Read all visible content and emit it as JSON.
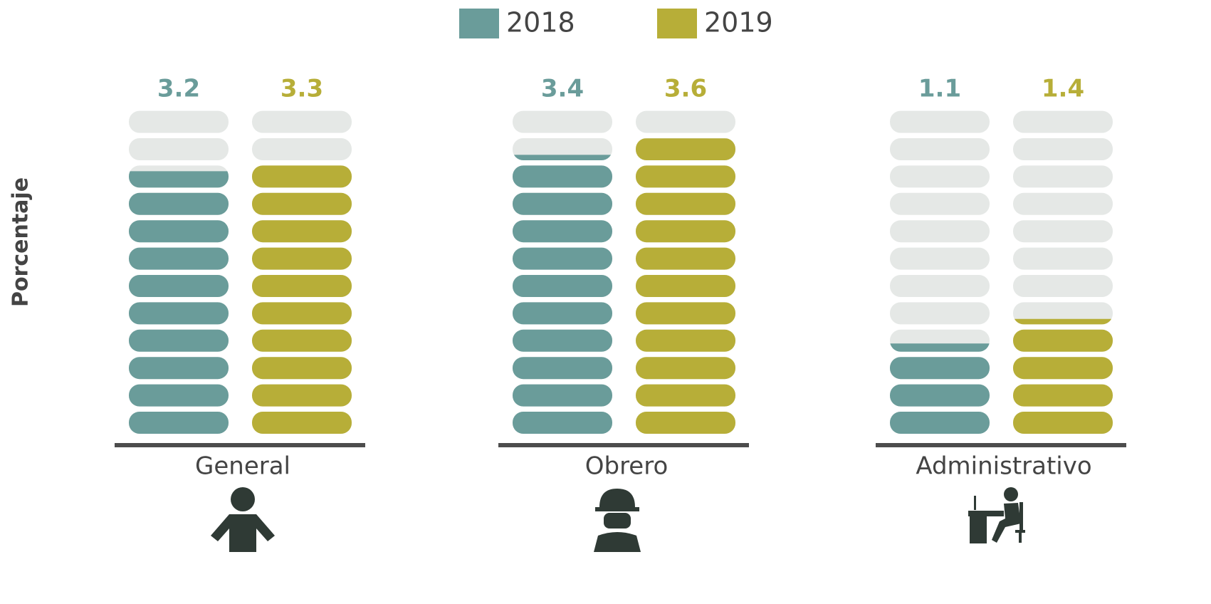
{
  "chart_data": {
    "type": "bar",
    "y_label": "Porcentaje",
    "categories": [
      "General",
      "Obrero",
      "Administrativo"
    ],
    "series": [
      {
        "name": "2018",
        "color": "#6a9c9a",
        "values": [
          3.2,
          3.4,
          1.1
        ]
      },
      {
        "name": "2019",
        "color": "#b7ae38",
        "values": [
          3.3,
          3.6,
          1.4
        ]
      }
    ],
    "ylim": [
      0,
      4
    ]
  }
}
